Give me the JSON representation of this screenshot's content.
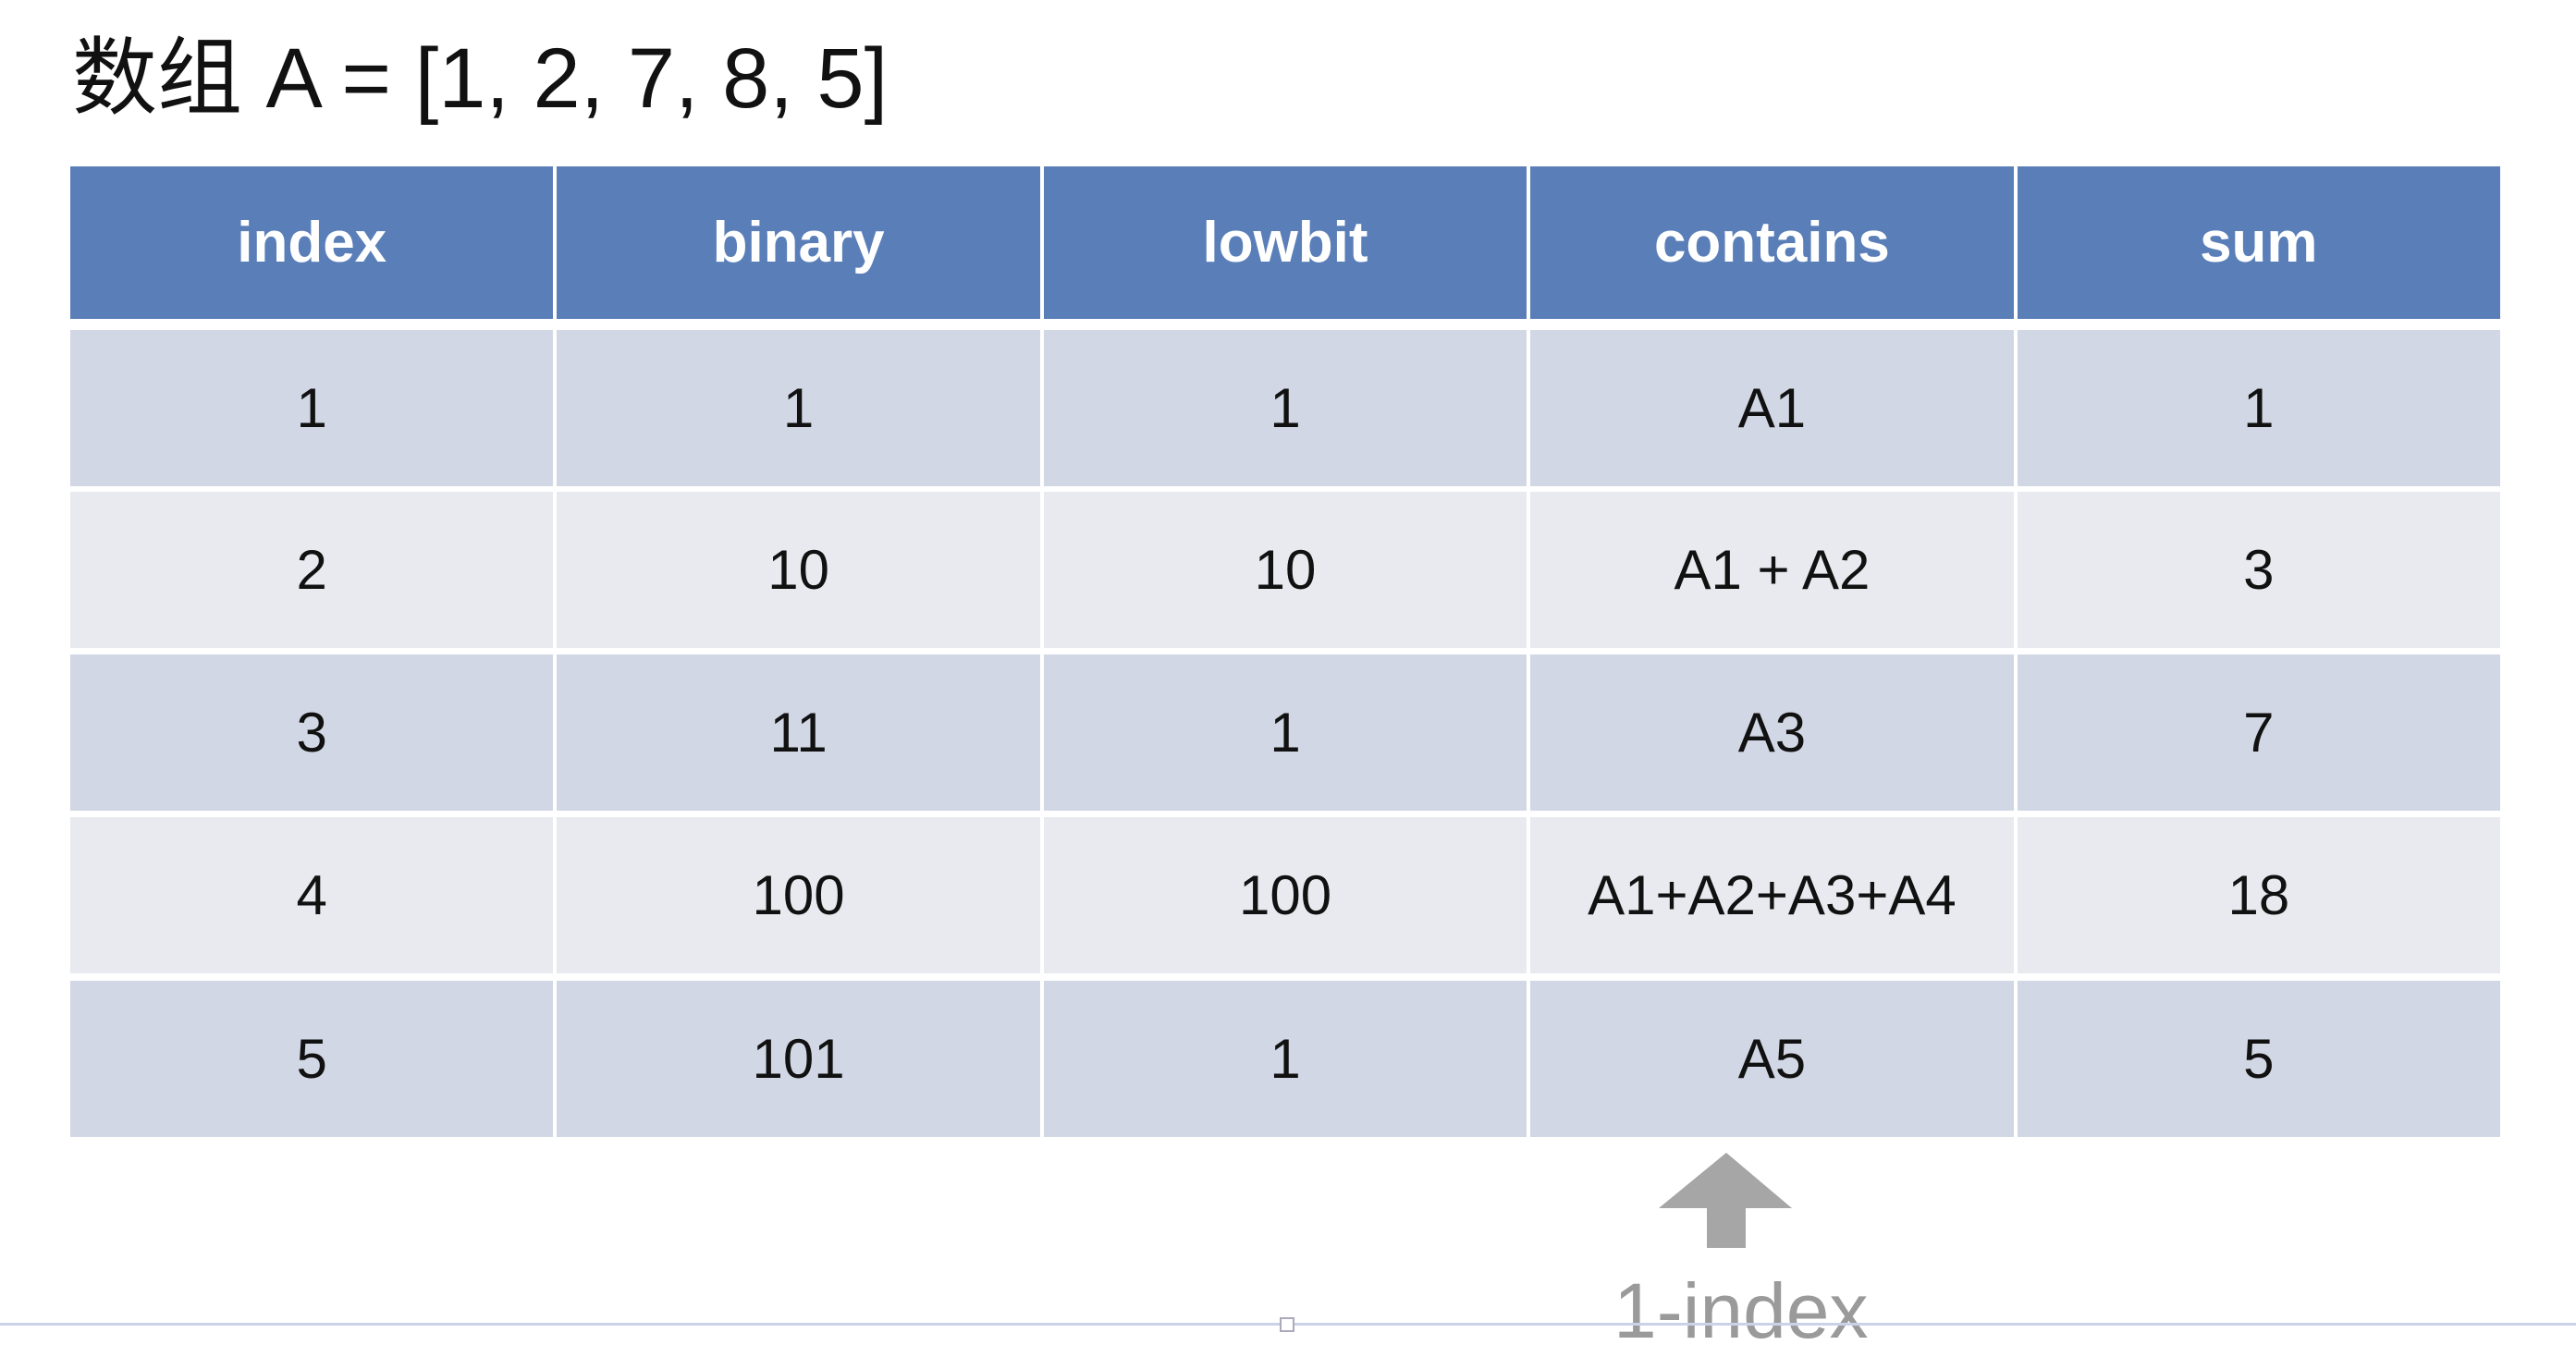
{
  "title": "数组 A = [1, 2, 7, 8, 5]",
  "table": {
    "headers": [
      "index",
      "binary",
      "lowbit",
      "contains",
      "sum"
    ],
    "rows": [
      [
        "1",
        "1",
        "1",
        "A1",
        "1"
      ],
      [
        "2",
        "10",
        "10",
        "A1 + A2",
        "3"
      ],
      [
        "3",
        "11",
        "1",
        "A3",
        "7"
      ],
      [
        "4",
        "100",
        "100",
        "A1+A2+A3+A4",
        "18"
      ],
      [
        "5",
        "101",
        "1",
        "A5",
        "5"
      ]
    ]
  },
  "annotation": {
    "icon": "arrow-up-icon",
    "label": "1-index"
  },
  "colors": {
    "header_bg": "#5a7fb8",
    "row_odd": "#d1d7e4",
    "row_even": "#e8eaef",
    "arrow": "#a6a6a6"
  }
}
